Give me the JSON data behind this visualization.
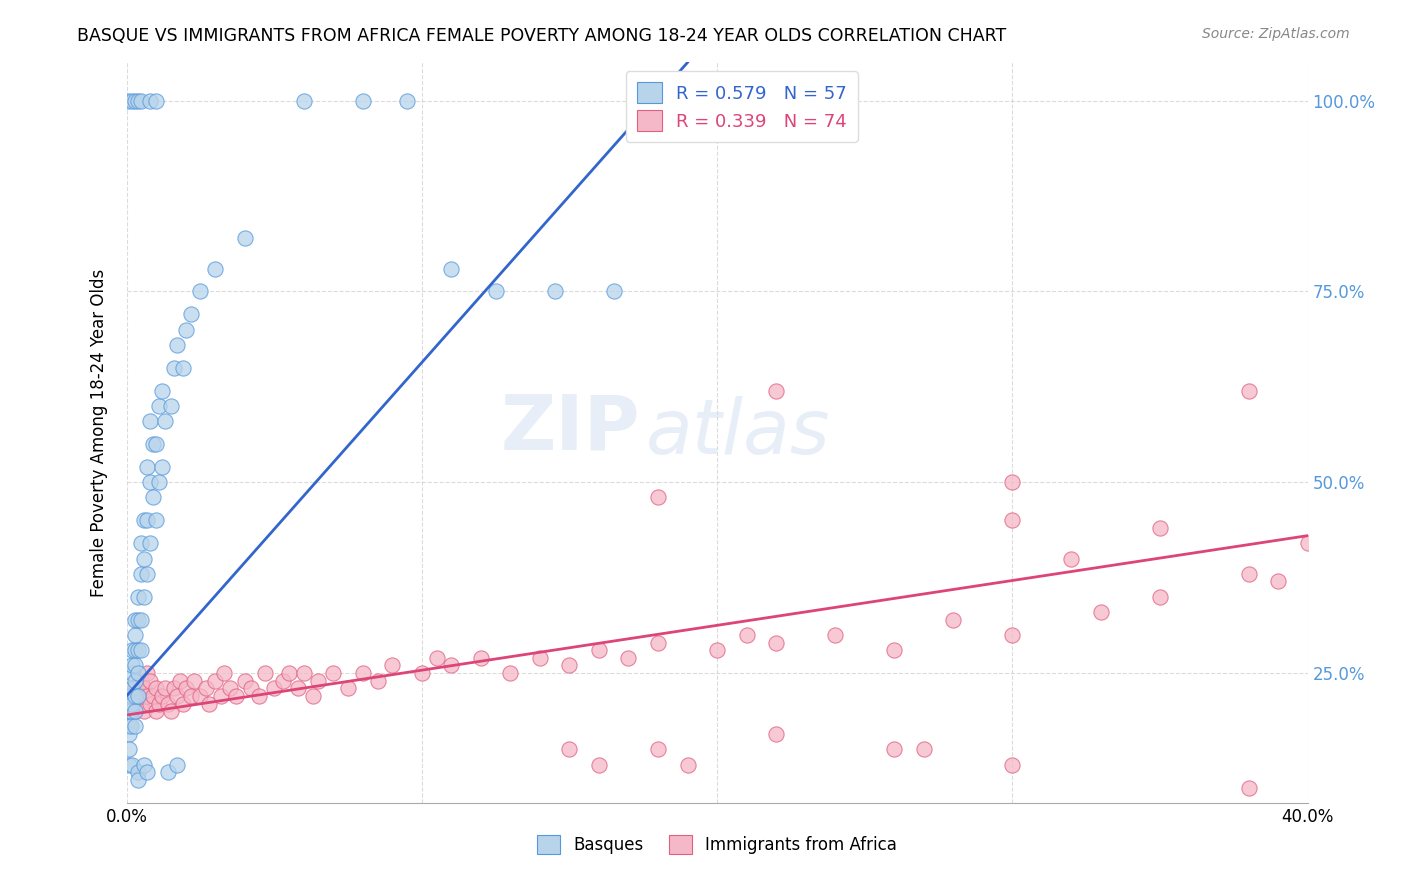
{
  "title": "BASQUE VS IMMIGRANTS FROM AFRICA FEMALE POVERTY AMONG 18-24 YEAR OLDS CORRELATION CHART",
  "source": "Source: ZipAtlas.com",
  "ylabel": "Female Poverty Among 18-24 Year Olds",
  "watermark_zip": "ZIP",
  "watermark_atlas": "atlas",
  "legend_line1": "R = 0.579   N = 57",
  "legend_line2": "R = 0.339   N = 74",
  "basque_fill_color": "#b8d4ea",
  "basque_edge_color": "#5599dd",
  "africa_fill_color": "#f5b8c8",
  "africa_edge_color": "#e06080",
  "blue_line_color": "#3366cc",
  "pink_line_color": "#dd4477",
  "background_color": "#ffffff",
  "grid_color": "#cccccc",
  "right_tick_color": "#5599dd",
  "basque_x": [
    0.0005,
    0.001,
    0.001,
    0.001,
    0.001,
    0.0015,
    0.0015,
    0.002,
    0.002,
    0.002,
    0.002,
    0.002,
    0.002,
    0.003,
    0.003,
    0.003,
    0.003,
    0.003,
    0.003,
    0.003,
    0.003,
    0.004,
    0.004,
    0.004,
    0.004,
    0.004,
    0.005,
    0.005,
    0.005,
    0.005,
    0.006,
    0.006,
    0.006,
    0.007,
    0.007,
    0.007,
    0.008,
    0.008,
    0.008,
    0.009,
    0.009,
    0.01,
    0.01,
    0.011,
    0.011,
    0.012,
    0.012,
    0.013,
    0.015,
    0.016,
    0.017,
    0.019,
    0.02,
    0.022,
    0.025,
    0.03,
    0.04
  ],
  "basque_y": [
    0.22,
    0.2,
    0.18,
    0.17,
    0.15,
    0.18,
    0.2,
    0.22,
    0.21,
    0.25,
    0.23,
    0.26,
    0.28,
    0.18,
    0.2,
    0.22,
    0.24,
    0.26,
    0.28,
    0.3,
    0.32,
    0.22,
    0.25,
    0.28,
    0.32,
    0.35,
    0.28,
    0.32,
    0.38,
    0.42,
    0.35,
    0.4,
    0.45,
    0.38,
    0.45,
    0.52,
    0.42,
    0.5,
    0.58,
    0.48,
    0.55,
    0.45,
    0.55,
    0.5,
    0.6,
    0.52,
    0.62,
    0.58,
    0.6,
    0.65,
    0.68,
    0.65,
    0.7,
    0.72,
    0.75,
    0.78,
    0.82
  ],
  "basque_top_x": [
    0.0005,
    0.002,
    0.003,
    0.004,
    0.005,
    0.008,
    0.01,
    0.06,
    0.08,
    0.095,
    0.11,
    0.125,
    0.145,
    0.165
  ],
  "basque_top_y": [
    1.0,
    1.0,
    1.0,
    1.0,
    1.0,
    1.0,
    1.0,
    1.0,
    1.0,
    1.0,
    0.78,
    0.75,
    0.75,
    0.75
  ],
  "africa_x": [
    0.001,
    0.002,
    0.003,
    0.003,
    0.004,
    0.005,
    0.005,
    0.006,
    0.006,
    0.007,
    0.007,
    0.008,
    0.008,
    0.009,
    0.01,
    0.01,
    0.011,
    0.012,
    0.013,
    0.014,
    0.015,
    0.016,
    0.017,
    0.018,
    0.019,
    0.02,
    0.022,
    0.023,
    0.025,
    0.027,
    0.028,
    0.03,
    0.032,
    0.033,
    0.035,
    0.037,
    0.04,
    0.042,
    0.045,
    0.047,
    0.05,
    0.053,
    0.055,
    0.058,
    0.06,
    0.063,
    0.065,
    0.07,
    0.075,
    0.08,
    0.085,
    0.09,
    0.1,
    0.105,
    0.11,
    0.12,
    0.13,
    0.14,
    0.15,
    0.16,
    0.17,
    0.18,
    0.2,
    0.21,
    0.22,
    0.24,
    0.26,
    0.28,
    0.3,
    0.33,
    0.35,
    0.38,
    0.39,
    0.4
  ],
  "africa_y": [
    0.22,
    0.21,
    0.2,
    0.23,
    0.22,
    0.21,
    0.24,
    0.2,
    0.23,
    0.22,
    0.25,
    0.21,
    0.24,
    0.22,
    0.2,
    0.23,
    0.21,
    0.22,
    0.23,
    0.21,
    0.2,
    0.23,
    0.22,
    0.24,
    0.21,
    0.23,
    0.22,
    0.24,
    0.22,
    0.23,
    0.21,
    0.24,
    0.22,
    0.25,
    0.23,
    0.22,
    0.24,
    0.23,
    0.22,
    0.25,
    0.23,
    0.24,
    0.25,
    0.23,
    0.25,
    0.22,
    0.24,
    0.25,
    0.23,
    0.25,
    0.24,
    0.26,
    0.25,
    0.27,
    0.26,
    0.27,
    0.25,
    0.27,
    0.26,
    0.28,
    0.27,
    0.29,
    0.28,
    0.3,
    0.29,
    0.3,
    0.28,
    0.32,
    0.3,
    0.33,
    0.35,
    0.38,
    0.37,
    0.42
  ],
  "africa_outlier_x": [
    0.18,
    0.22,
    0.38,
    0.15,
    0.16,
    0.18,
    0.22,
    0.26,
    0.27,
    0.19,
    0.3,
    0.38,
    0.3,
    0.3,
    0.32,
    0.35
  ],
  "africa_outlier_y": [
    0.48,
    0.62,
    0.62,
    0.15,
    0.13,
    0.15,
    0.17,
    0.15,
    0.15,
    0.13,
    0.13,
    0.1,
    0.45,
    0.5,
    0.4,
    0.44
  ],
  "basque_low_x": [
    0.001,
    0.002,
    0.004,
    0.004,
    0.006,
    0.007,
    0.014,
    0.017
  ],
  "basque_low_y": [
    0.13,
    0.13,
    0.12,
    0.11,
    0.13,
    0.12,
    0.12,
    0.13
  ],
  "xlim": [
    0.0,
    0.4
  ],
  "ylim": [
    0.08,
    1.05
  ],
  "blue_line_x0": 0.0,
  "blue_line_y0": 0.22,
  "blue_line_x1": 0.19,
  "blue_line_y1": 1.05,
  "pink_line_x0": 0.0,
  "pink_line_y0": 0.195,
  "pink_line_x1": 0.4,
  "pink_line_y1": 0.43
}
